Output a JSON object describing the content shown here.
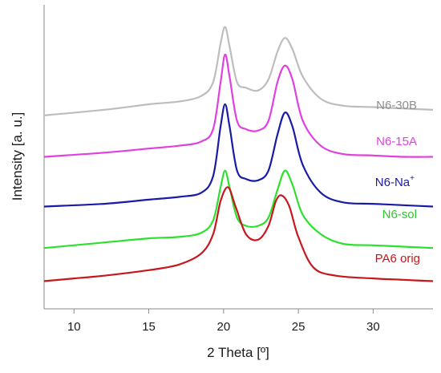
{
  "chart_data": {
    "type": "line",
    "xlabel": "2 Theta [º]",
    "ylabel": "Intensity [a. u.]",
    "xlim": [
      8,
      34
    ],
    "ylim": [
      0,
      110
    ],
    "xticks": [
      10,
      15,
      20,
      25,
      30
    ],
    "grid": false,
    "legend": "series labels placed at right, next to each curve",
    "series": [
      {
        "name": "N6-30B",
        "label_sup": "",
        "color": "#bdbdbd",
        "x": [
          8,
          12,
          15,
          17,
          18.5,
          19.3,
          19.8,
          20.1,
          20.4,
          20.9,
          21.5,
          22.3,
          23.0,
          23.6,
          24.1,
          24.6,
          25.3,
          26.5,
          28,
          30,
          32,
          34
        ],
        "y": [
          70,
          72,
          74,
          75,
          77,
          82,
          96,
          102,
          95,
          82,
          80,
          79,
          83,
          93,
          98,
          94,
          84,
          76,
          73.5,
          73,
          72.5,
          72
        ]
      },
      {
        "name": "N6-15A",
        "label_sup": "",
        "color": "#e040e0",
        "x": [
          8,
          12,
          15,
          17,
          18.5,
          19.3,
          19.8,
          20.1,
          20.4,
          20.9,
          21.5,
          22.3,
          23.0,
          23.6,
          24.1,
          24.6,
          25.3,
          26.5,
          28,
          30,
          32,
          34
        ],
        "y": [
          55,
          56.5,
          58,
          59,
          60.5,
          65,
          82,
          92,
          84,
          68,
          65,
          64.5,
          68,
          82,
          88,
          83,
          68,
          59,
          56,
          55.5,
          55,
          55
        ]
      },
      {
        "name": "N6-Na",
        "label_sup": "+",
        "color": "#1a1aa8",
        "x": [
          8,
          12,
          15,
          17,
          18.5,
          19.3,
          19.8,
          20.1,
          20.4,
          20.9,
          21.5,
          22.3,
          23.0,
          23.6,
          24.1,
          24.6,
          25.3,
          26.5,
          28,
          30,
          32,
          34
        ],
        "y": [
          37,
          38,
          39.5,
          40.5,
          42,
          48,
          66,
          74,
          66,
          50,
          47,
          46.5,
          50,
          63,
          71,
          66,
          52,
          42,
          38.5,
          38,
          37.5,
          37
        ]
      },
      {
        "name": "N6-sol",
        "label_sup": "",
        "color": "#2ee02e",
        "x": [
          8,
          12,
          15,
          17,
          18.5,
          19.3,
          19.8,
          20.1,
          20.4,
          20.9,
          21.5,
          22.3,
          23.0,
          23.6,
          24.1,
          24.6,
          25.3,
          26.5,
          28,
          30,
          32,
          34
        ],
        "y": [
          22,
          24,
          25.5,
          26,
          27.5,
          32,
          44,
          50,
          44,
          33,
          30,
          30,
          33,
          43,
          50,
          45,
          34,
          27,
          23.5,
          23,
          22.5,
          22
        ]
      },
      {
        "name": "PA6 orig",
        "label_sup": "",
        "color": "#c8171c",
        "x": [
          8,
          10,
          12,
          15,
          17,
          18.5,
          19.3,
          19.8,
          20.3,
          20.8,
          21.5,
          22.3,
          23.0,
          23.5,
          23.9,
          24.4,
          25.0,
          26.0,
          27.5,
          30,
          32,
          34
        ],
        "y": [
          10,
          11,
          12,
          14,
          16,
          20,
          27,
          39,
          44,
          37,
          27,
          25,
          30,
          39,
          41,
          37,
          26,
          15,
          12,
          11,
          10.5,
          10
        ]
      }
    ]
  },
  "labels": {
    "n6_30b": "N6-30B",
    "n6_15a": "N6-15A",
    "n6_na": "N6-Na",
    "n6_na_sup": "+",
    "n6_sol": "N6-sol",
    "pa6": "PA6 orig"
  }
}
